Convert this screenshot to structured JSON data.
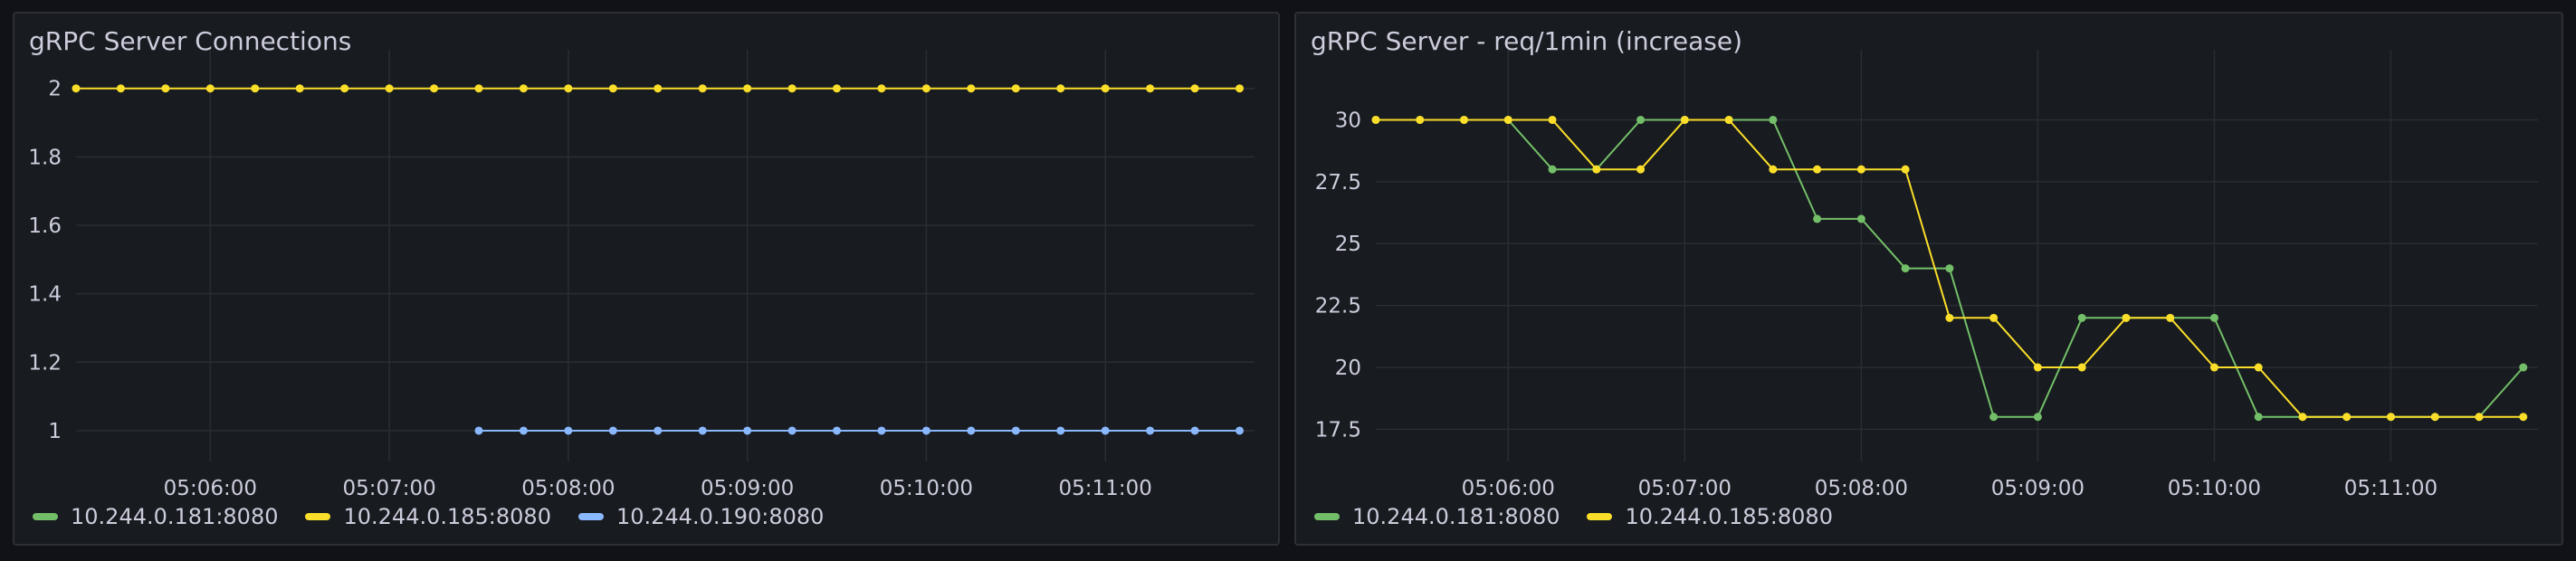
{
  "chart_data": [
    {
      "type": "line",
      "title": "gRPC Server Connections",
      "xlabel": "",
      "ylabel": "",
      "x_ticks": [
        "05:06:00",
        "05:07:00",
        "05:08:00",
        "05:09:00",
        "05:10:00",
        "05:11:00"
      ],
      "y_ticks": [
        "1",
        "1.2",
        "1.4",
        "1.6",
        "1.8",
        "2"
      ],
      "xlim": [
        "05:05:15",
        "05:11:50"
      ],
      "ylim": [
        0.91,
        2.06
      ],
      "grid": true,
      "legend_position": "bottom-left",
      "x": [
        "05:05:15",
        "05:05:30",
        "05:05:45",
        "05:06:00",
        "05:06:15",
        "05:06:30",
        "05:06:45",
        "05:07:00",
        "05:07:15",
        "05:07:30",
        "05:07:45",
        "05:08:00",
        "05:08:15",
        "05:08:30",
        "05:08:45",
        "05:09:00",
        "05:09:15",
        "05:09:30",
        "05:09:45",
        "05:10:00",
        "05:10:15",
        "05:10:30",
        "05:10:45",
        "05:11:00",
        "05:11:15",
        "05:11:30",
        "05:11:45"
      ],
      "series": [
        {
          "name": "10.244.0.181:8080",
          "color": "#73bf69",
          "values": [
            null,
            null,
            null,
            null,
            null,
            null,
            null,
            null,
            null,
            null,
            null,
            null,
            null,
            null,
            null,
            null,
            null,
            null,
            null,
            null,
            null,
            null,
            null,
            null,
            null,
            null,
            null
          ]
        },
        {
          "name": "10.244.0.185:8080",
          "color": "#fade2a",
          "values": [
            2,
            2,
            2,
            2,
            2,
            2,
            2,
            2,
            2,
            2,
            2,
            2,
            2,
            2,
            2,
            2,
            2,
            2,
            2,
            2,
            2,
            2,
            2,
            2,
            2,
            2,
            2
          ]
        },
        {
          "name": "10.244.0.190:8080",
          "color": "#8ab8ff",
          "values": [
            null,
            null,
            null,
            null,
            null,
            null,
            null,
            null,
            null,
            1,
            1,
            1,
            1,
            1,
            1,
            1,
            1,
            1,
            1,
            1,
            1,
            1,
            1,
            1,
            1,
            1,
            1
          ]
        }
      ]
    },
    {
      "type": "line",
      "title": "gRPC Server - req/1min (increase)",
      "xlabel": "",
      "ylabel": "",
      "x_ticks": [
        "05:06:00",
        "05:07:00",
        "05:08:00",
        "05:09:00",
        "05:10:00",
        "05:11:00"
      ],
      "y_ticks": [
        "17.5",
        "20",
        "22.5",
        "25",
        "27.5",
        "30"
      ],
      "xlim": [
        "05:05:15",
        "05:11:50"
      ],
      "ylim": [
        16.2,
        32.1
      ],
      "grid": true,
      "legend_position": "bottom-left",
      "x": [
        "05:05:15",
        "05:05:30",
        "05:05:45",
        "05:06:00",
        "05:06:15",
        "05:06:30",
        "05:06:45",
        "05:07:00",
        "05:07:15",
        "05:07:30",
        "05:07:45",
        "05:08:00",
        "05:08:15",
        "05:08:30",
        "05:08:45",
        "05:09:00",
        "05:09:15",
        "05:09:30",
        "05:09:45",
        "05:10:00",
        "05:10:15",
        "05:10:30",
        "05:10:45",
        "05:11:00",
        "05:11:15",
        "05:11:30",
        "05:11:45"
      ],
      "series": [
        {
          "name": "10.244.0.181:8080",
          "color": "#73bf69",
          "values": [
            30,
            30,
            30,
            30,
            28,
            28,
            30,
            30,
            30,
            30,
            26,
            26,
            24,
            24,
            18,
            18,
            22,
            22,
            22,
            22,
            18,
            18,
            18,
            18,
            18,
            18,
            20
          ]
        },
        {
          "name": "10.244.0.185:8080",
          "color": "#fade2a",
          "values": [
            30,
            30,
            30,
            30,
            30,
            28,
            28,
            30,
            30,
            28,
            28,
            28,
            28,
            22,
            22,
            20,
            20,
            22,
            22,
            20,
            20,
            18,
            18,
            18,
            18,
            18,
            18
          ]
        }
      ]
    }
  ]
}
